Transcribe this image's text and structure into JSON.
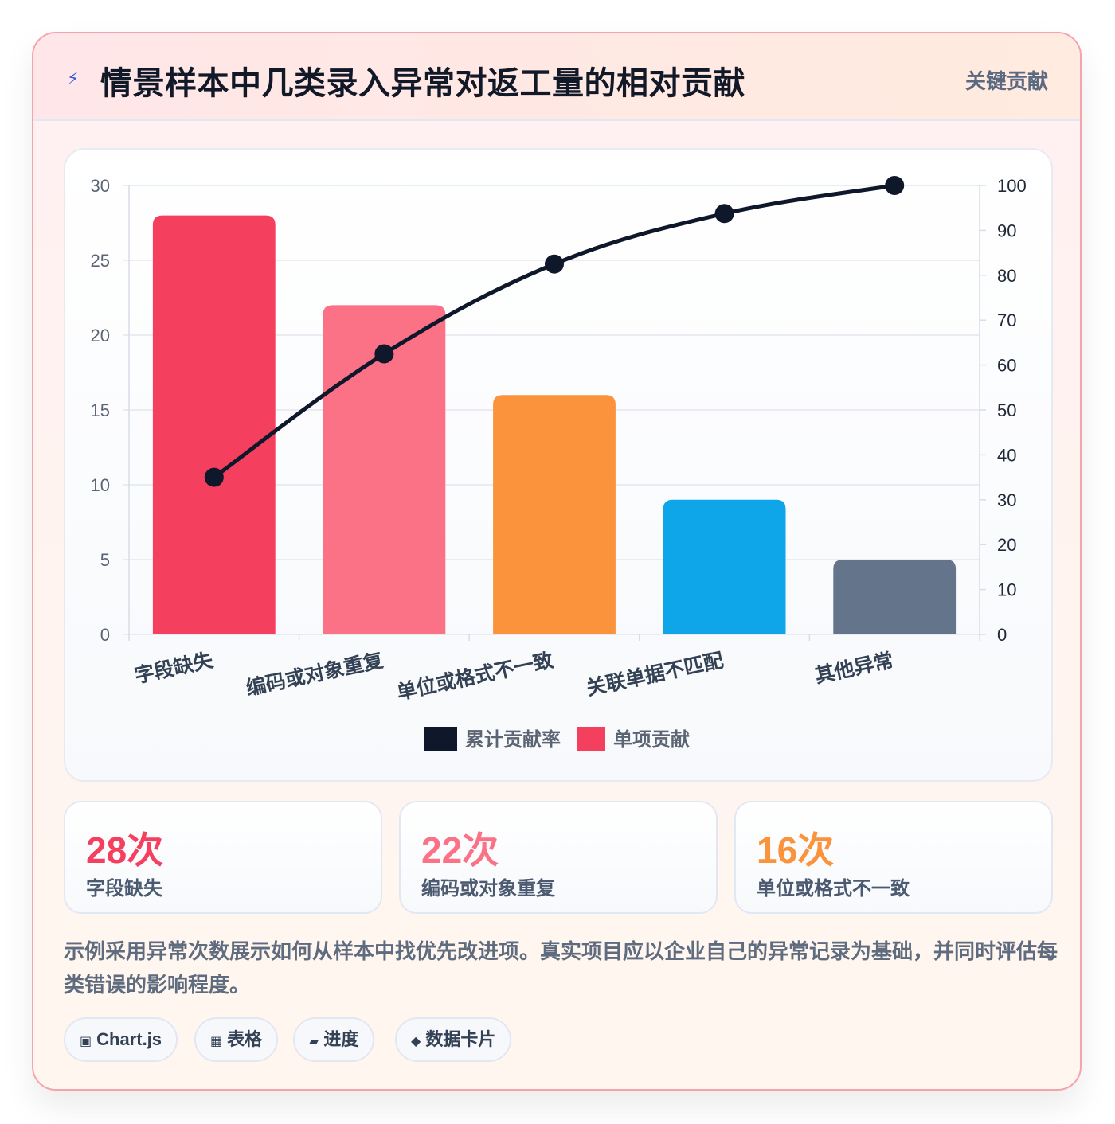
{
  "header": {
    "title": "情景样本中几类录入异常对返工量的相对贡献",
    "tag": "关键贡献",
    "icon": "lightning-icon"
  },
  "chart_data": {
    "type": "bar",
    "categories": [
      "字段缺失",
      "编码或对象重复",
      "单位或格式不一致",
      "关联单据不匹配",
      "其他异常"
    ],
    "series": [
      {
        "name": "单项贡献",
        "type": "bar",
        "axis": "left",
        "values": [
          28,
          22,
          16,
          9,
          5
        ],
        "colors": [
          "#f43f5e",
          "#fb7185",
          "#fb923c",
          "#0ea5e9",
          "#64748b"
        ]
      },
      {
        "name": "累计贡献率",
        "type": "line",
        "axis": "right",
        "values": [
          35,
          62.5,
          82.5,
          93.75,
          100
        ],
        "color": "#0f172a"
      }
    ],
    "ylim": [
      0,
      30
    ],
    "yticks": [
      0,
      5,
      10,
      15,
      20,
      25,
      30
    ],
    "y2lim": [
      0,
      100
    ],
    "y2ticks": [
      0,
      10,
      20,
      30,
      40,
      50,
      60,
      70,
      80,
      90,
      100
    ],
    "legend": [
      "累计贡献率",
      "单项贡献"
    ],
    "legend_colors": [
      "#0f172a",
      "#f43f5e"
    ],
    "legend_position": "bottom",
    "grid": true
  },
  "stats": [
    {
      "value": "28次",
      "label": "字段缺失",
      "color": "#f43f5e"
    },
    {
      "value": "22次",
      "label": "编码或对象重复",
      "color": "#fb7185"
    },
    {
      "value": "16次",
      "label": "单位或格式不一致",
      "color": "#fb923c"
    }
  ],
  "description": "示例采用异常次数展示如何从样本中找优先改进项。真实项目应以企业自己的异常记录为基础，并同时评估每类错误的影响程度。",
  "chips": [
    {
      "icon": "▣",
      "label": "Chart.js"
    },
    {
      "icon": "▦",
      "label": "表格"
    },
    {
      "icon": "▰",
      "label": "进度"
    },
    {
      "icon": "◆",
      "label": "数据卡片"
    }
  ]
}
